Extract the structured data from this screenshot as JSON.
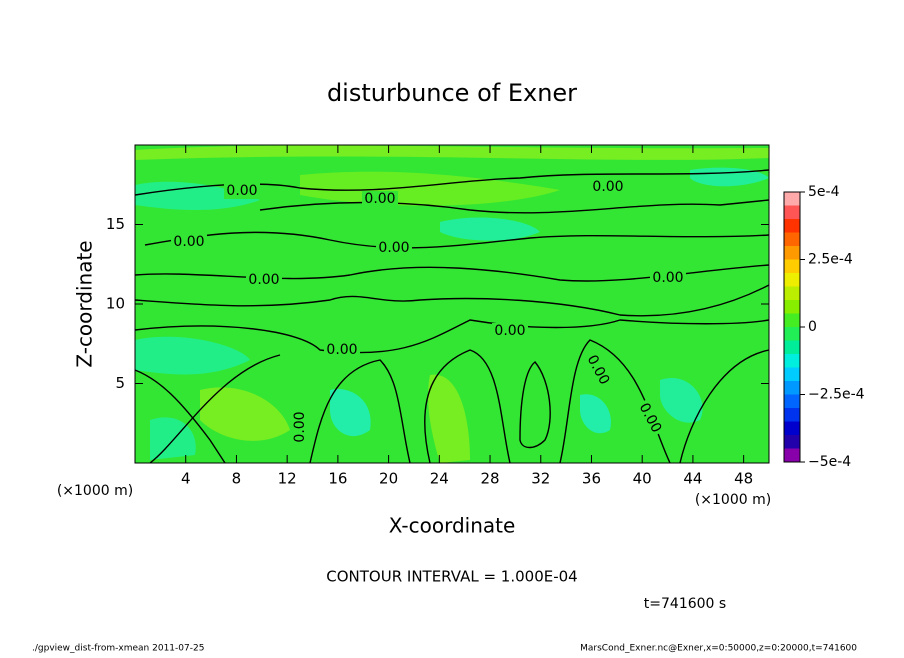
{
  "chart_data": {
    "type": "contour",
    "title": "disturbunce of Exner",
    "x_label": "X-coordinate",
    "y_label": "Z-coordinate",
    "x_unit": "(×1000 m)",
    "xlim": [
      0,
      50
    ],
    "xticks": [
      4,
      8,
      12,
      16,
      20,
      24,
      28,
      32,
      36,
      40,
      44,
      48
    ],
    "ylim": [
      0,
      20
    ],
    "yticks": [
      5,
      10,
      15
    ],
    "contour_labels": [
      "0.00",
      "0.00",
      "0.00",
      "0.00",
      "0.00",
      "0.00",
      "0.00",
      "0.00",
      "0.00",
      "0.00",
      "0.00",
      "0.00"
    ],
    "colorbar": {
      "range": [
        -0.0005,
        0.0005
      ],
      "ticks": [
        {
          "value": 0.0005,
          "label": "5e-4"
        },
        {
          "value": 0.00025,
          "label": "2.5e-4"
        },
        0,
        {
          "value": -0.00025,
          "label": "−2.5e-4"
        },
        {
          "value": -0.0005,
          "label": "−5e-4"
        }
      ],
      "levels": [
        -0.0005,
        -0.00045,
        -0.0004,
        -0.00035,
        -0.0003,
        -0.00025,
        -0.0002,
        -0.00015,
        -0.0001,
        -5e-05,
        0,
        5e-05,
        0.0001,
        0.00015,
        0.0002,
        0.00025,
        0.0003,
        0.00035,
        0.0004,
        0.00045,
        0.0005
      ],
      "colors": [
        "#8800aa",
        "#2200aa",
        "#0000cc",
        "#0033ee",
        "#0066ff",
        "#0099ff",
        "#00ccff",
        "#00eedd",
        "#00ee99",
        "#22ee55",
        "#44ee22",
        "#88ee00",
        "#bbee00",
        "#eeee00",
        "#ffcc00",
        "#ff9900",
        "#ff6600",
        "#ff3300",
        "#ff5555",
        "#ffaaaa"
      ]
    },
    "contour_interval": "CONTOUR INTERVAL = 1.000E-04",
    "time": "t=741600 s",
    "footer_left": "./gpview_dist-from-xmean  2011-07-25",
    "footer_right": "MarsCond_Exner.nc@Exner,x=0:50000,z=0:20000,t=741600"
  }
}
